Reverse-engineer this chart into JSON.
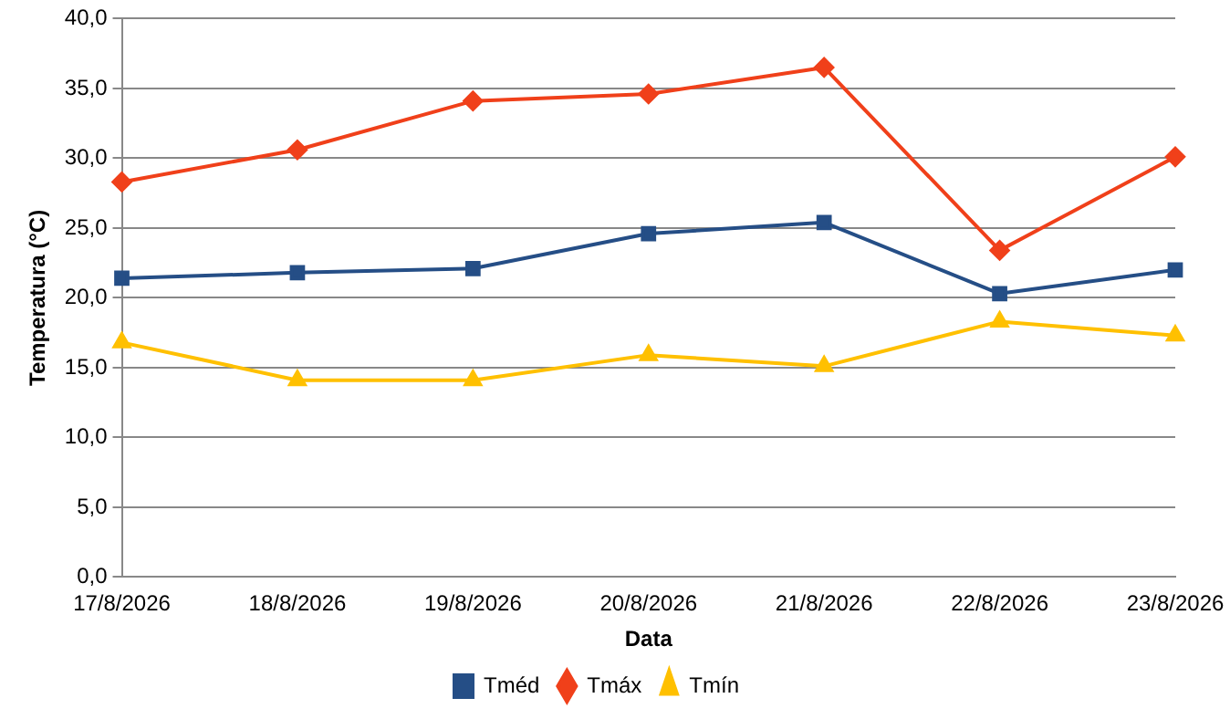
{
  "chart_data": {
    "type": "line",
    "xlabel": "Data",
    "ylabel": "Temperatura (°C)",
    "categories": [
      "17/8/2026",
      "18/8/2026",
      "19/8/2026",
      "20/8/2026",
      "21/8/2026",
      "22/8/2026",
      "23/8/2026"
    ],
    "series": [
      {
        "name": "Tméd",
        "color": "#254e86",
        "marker": "square",
        "values": [
          21.4,
          21.8,
          22.1,
          24.6,
          25.4,
          20.3,
          22.0
        ]
      },
      {
        "name": "Tmáx",
        "color": "#f0401a",
        "marker": "diamond",
        "values": [
          28.3,
          30.6,
          34.1,
          34.6,
          36.5,
          23.4,
          30.1
        ]
      },
      {
        "name": "Tmín",
        "color": "#ffc000",
        "marker": "triangle",
        "values": [
          16.8,
          14.1,
          14.1,
          15.9,
          15.1,
          18.3,
          17.3
        ]
      }
    ],
    "ylim": [
      0,
      40
    ],
    "yticks": [
      {
        "value": 0,
        "label": "0,0"
      },
      {
        "value": 5,
        "label": "5,0"
      },
      {
        "value": 10,
        "label": "10,0"
      },
      {
        "value": 15,
        "label": "15,0"
      },
      {
        "value": 20,
        "label": "20,0"
      },
      {
        "value": 25,
        "label": "25,0"
      },
      {
        "value": 30,
        "label": "30,0"
      },
      {
        "value": 35,
        "label": "35,0"
      },
      {
        "value": 40,
        "label": "40,0"
      }
    ],
    "grid": "y",
    "legend": "bottom",
    "line_style": "solid"
  }
}
